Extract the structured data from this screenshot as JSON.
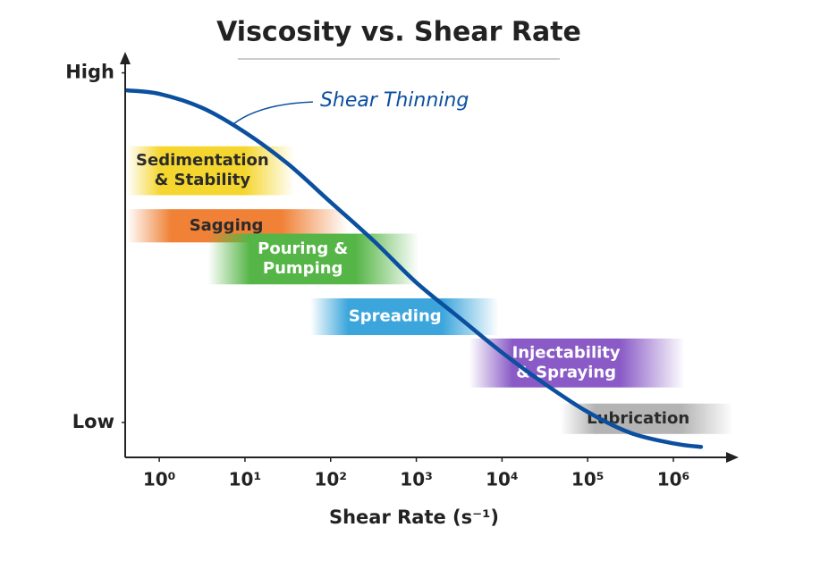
{
  "chart_data": {
    "type": "line",
    "title": "Viscosity vs. Shear Rate",
    "x_label": "Shear Rate (s⁻¹)",
    "log_x": true,
    "xlim": [
      0.4,
      5000000
    ],
    "xticks": [
      {
        "value": 1,
        "label": "10⁰"
      },
      {
        "value": 10,
        "label": "10¹"
      },
      {
        "value": 100,
        "label": "10²"
      },
      {
        "value": 1000,
        "label": "10³"
      },
      {
        "value": 10000,
        "label": "10⁴"
      },
      {
        "value": 100000,
        "label": "10⁵"
      },
      {
        "value": 1000000,
        "label": "10⁶"
      }
    ],
    "ylim": [
      -0.1,
      1.05
    ],
    "yticks": [
      {
        "value": 1,
        "label": "High"
      },
      {
        "value": 0,
        "label": "Low"
      }
    ],
    "x": [
      0.42,
      1,
      3.16,
      10,
      31.6,
      100,
      316,
      1000,
      3160,
      10000,
      31600,
      100000,
      316000,
      1000000,
      2100000
    ],
    "series": [
      {
        "name": "Shear Thinning",
        "color": "#0b4f9f",
        "values": [
          0.95,
          0.94,
          0.9,
          0.83,
          0.74,
          0.63,
          0.52,
          0.4,
          0.3,
          0.2,
          0.11,
          0.03,
          -0.03,
          -0.06,
          -0.07
        ]
      }
    ],
    "regions": [
      {
        "label": [
          "Sedimentation",
          "& Stability"
        ],
        "color": "#f5d62e",
        "text_color": "#2b2b2b",
        "x_range": [
          0.42,
          38
        ],
        "y_range": [
          0.65,
          0.79
        ]
      },
      {
        "label": [
          "Sagging"
        ],
        "color": "#f08136",
        "text_color": "#2b2b2b",
        "x_range": [
          0.42,
          158
        ],
        "y_range": [
          0.515,
          0.61
        ]
      },
      {
        "label": [
          "Pouring &",
          "Pumping"
        ],
        "color": "#55b546",
        "text_color": "#ffffff",
        "x_range": [
          3.7,
          1070
        ],
        "y_range": [
          0.395,
          0.54
        ]
      },
      {
        "label": [
          "Spreading"
        ],
        "color": "#3ca6dc",
        "text_color": "#ffffff",
        "x_range": [
          58,
          9100
        ],
        "y_range": [
          0.25,
          0.355
        ]
      },
      {
        "label": [
          "Injectability",
          "& Spraying"
        ],
        "color": "#8a5bc6",
        "text_color": "#ffffff",
        "x_range": [
          4150,
          1350000
        ],
        "y_range": [
          0.1,
          0.24
        ]
      },
      {
        "label": [
          "Lubrication"
        ],
        "color": "#b4b4b4",
        "text_color": "#2b2b2b",
        "x_range": [
          48000,
          5000000
        ],
        "y_range": [
          -0.033,
          0.054
        ]
      }
    ]
  }
}
